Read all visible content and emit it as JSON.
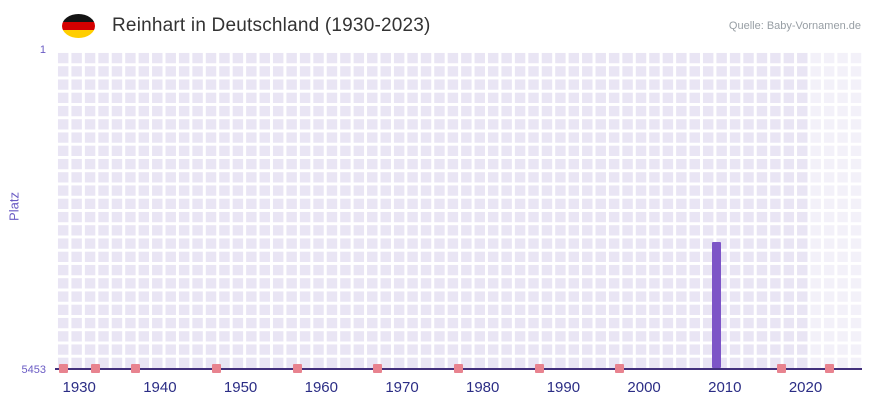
{
  "header": {
    "title": "Reinhart in Deutschland (1930-2023)",
    "source": "Quelle: Baby-Vornamen.de",
    "flag_icon": "germany-flag"
  },
  "chart_data": {
    "type": "bar",
    "title": "Reinhart in Deutschland (1930-2023)",
    "xlabel": "",
    "ylabel": "Platz",
    "y_axis": {
      "top_label": "1",
      "bottom_label": "5453",
      "min": 1,
      "max": 5453,
      "inverted": true
    },
    "x_domain": [
      1927,
      2027
    ],
    "x_ticks": [
      1930,
      1940,
      1950,
      1960,
      1970,
      1980,
      1990,
      2000,
      2010,
      2020
    ],
    "grid": true,
    "legend": false,
    "recent_band_from": 2020.5,
    "colors": {
      "bar_highlight": "#7d55c7",
      "bar_marker": "#e8838f",
      "grid_cell": "#e9e5f4",
      "axis_line": "#42307c",
      "x_tick_text": "#2b2d85",
      "y_tick_text": "#6a5bc4",
      "recent_band": "rgba(255,255,255,0.45)"
    },
    "points": [
      {
        "year": 1928,
        "rank": 5453
      },
      {
        "year": 1932,
        "rank": 5453
      },
      {
        "year": 1937,
        "rank": 5453
      },
      {
        "year": 1947,
        "rank": 5453
      },
      {
        "year": 1957,
        "rank": 5453
      },
      {
        "year": 1967,
        "rank": 5453
      },
      {
        "year": 1977,
        "rank": 5453
      },
      {
        "year": 1987,
        "rank": 5453
      },
      {
        "year": 1997,
        "rank": 5453
      },
      {
        "year": 2009,
        "rank": 3300,
        "highlight": true
      },
      {
        "year": 2017,
        "rank": 5453
      },
      {
        "year": 2023,
        "rank": 5453
      }
    ]
  }
}
